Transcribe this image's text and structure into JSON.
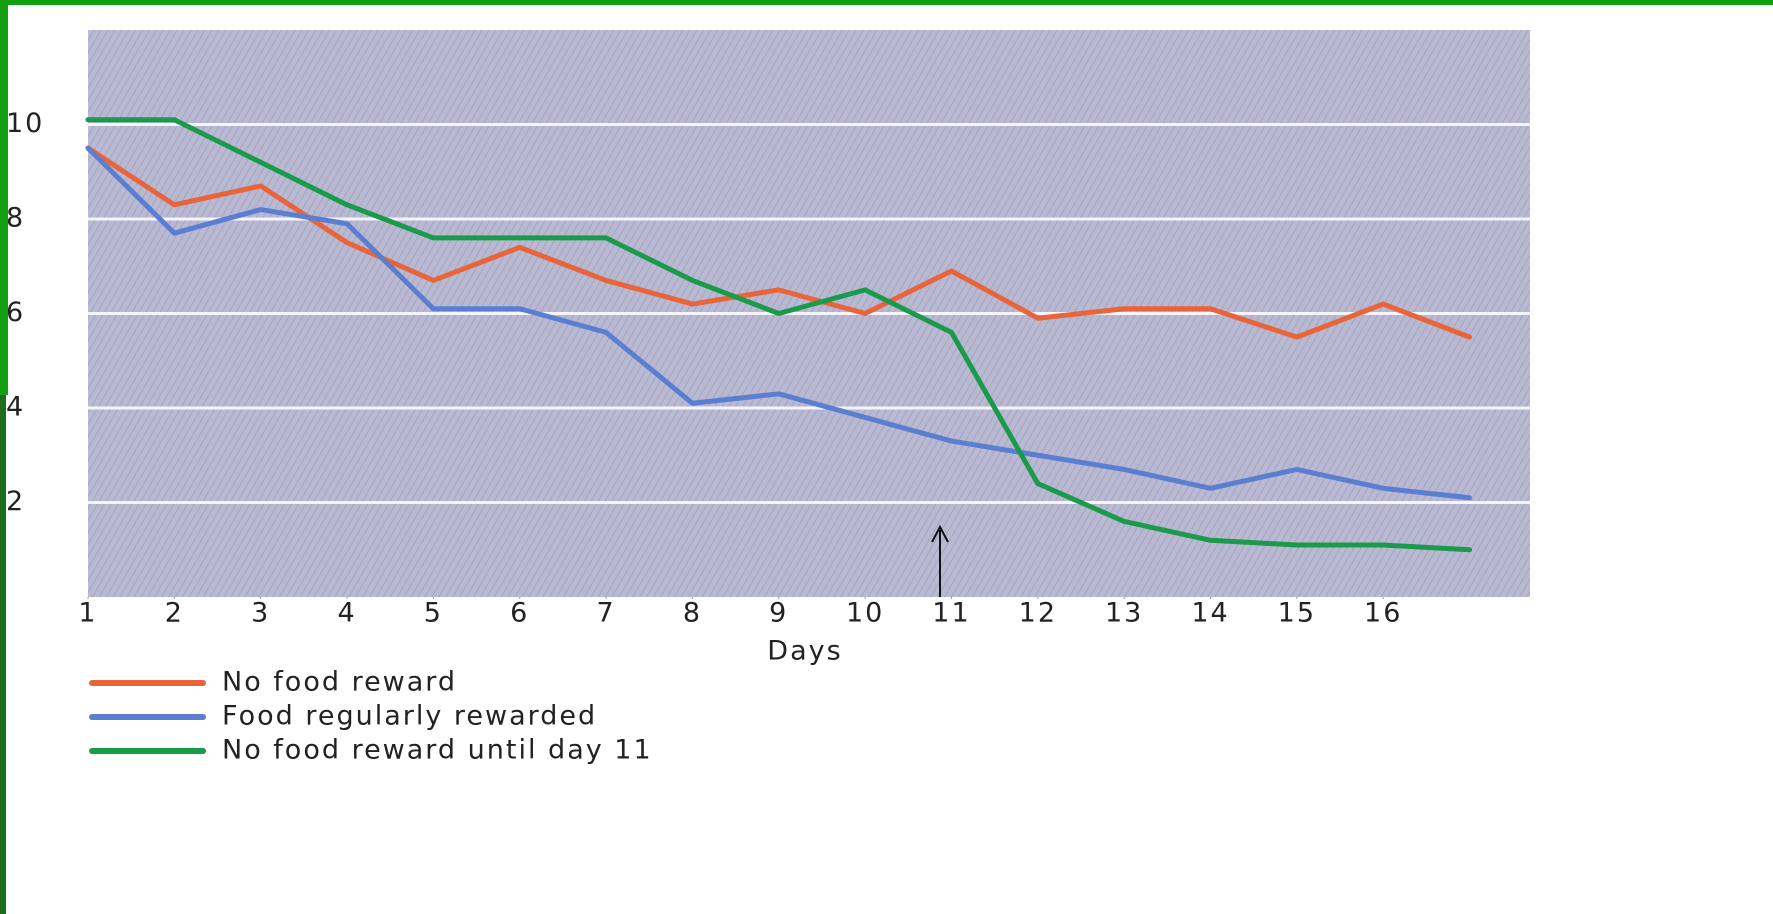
{
  "chart_data": {
    "type": "line",
    "x_label": "Days",
    "x": [
      1,
      2,
      3,
      4,
      5,
      6,
      7,
      8,
      9,
      10,
      11,
      12,
      13,
      14,
      15,
      16,
      17
    ],
    "xlim": [
      1,
      17.7
    ],
    "xticks": [
      1,
      2,
      3,
      4,
      5,
      6,
      7,
      8,
      9,
      10,
      11,
      12,
      13,
      14,
      15,
      16
    ],
    "ylim": [
      0,
      12
    ],
    "yticks": [
      2,
      4,
      6,
      8,
      10
    ],
    "grid": true,
    "series": [
      {
        "name": "No food reward",
        "color": "#e8643a",
        "values": [
          9.5,
          8.3,
          8.7,
          7.5,
          6.7,
          7.4,
          6.7,
          6.2,
          6.5,
          6.0,
          6.9,
          5.9,
          6.1,
          6.1,
          5.5,
          6.2,
          5.5
        ]
      },
      {
        "name": "Food regularly rewarded",
        "color": "#5a7fd0",
        "values": [
          9.5,
          7.7,
          8.2,
          7.9,
          6.1,
          6.1,
          5.6,
          4.1,
          4.3,
          3.8,
          3.3,
          3.0,
          2.7,
          2.3,
          2.7,
          2.3,
          2.1
        ]
      },
      {
        "name": "No food reward until day 11",
        "color": "#1a9a4a",
        "values": [
          10.1,
          10.1,
          9.2,
          8.3,
          7.6,
          7.6,
          7.6,
          6.7,
          6.0,
          6.5,
          5.6,
          2.4,
          1.6,
          1.2,
          1.1,
          1.1,
          1.0
        ]
      }
    ]
  }
}
